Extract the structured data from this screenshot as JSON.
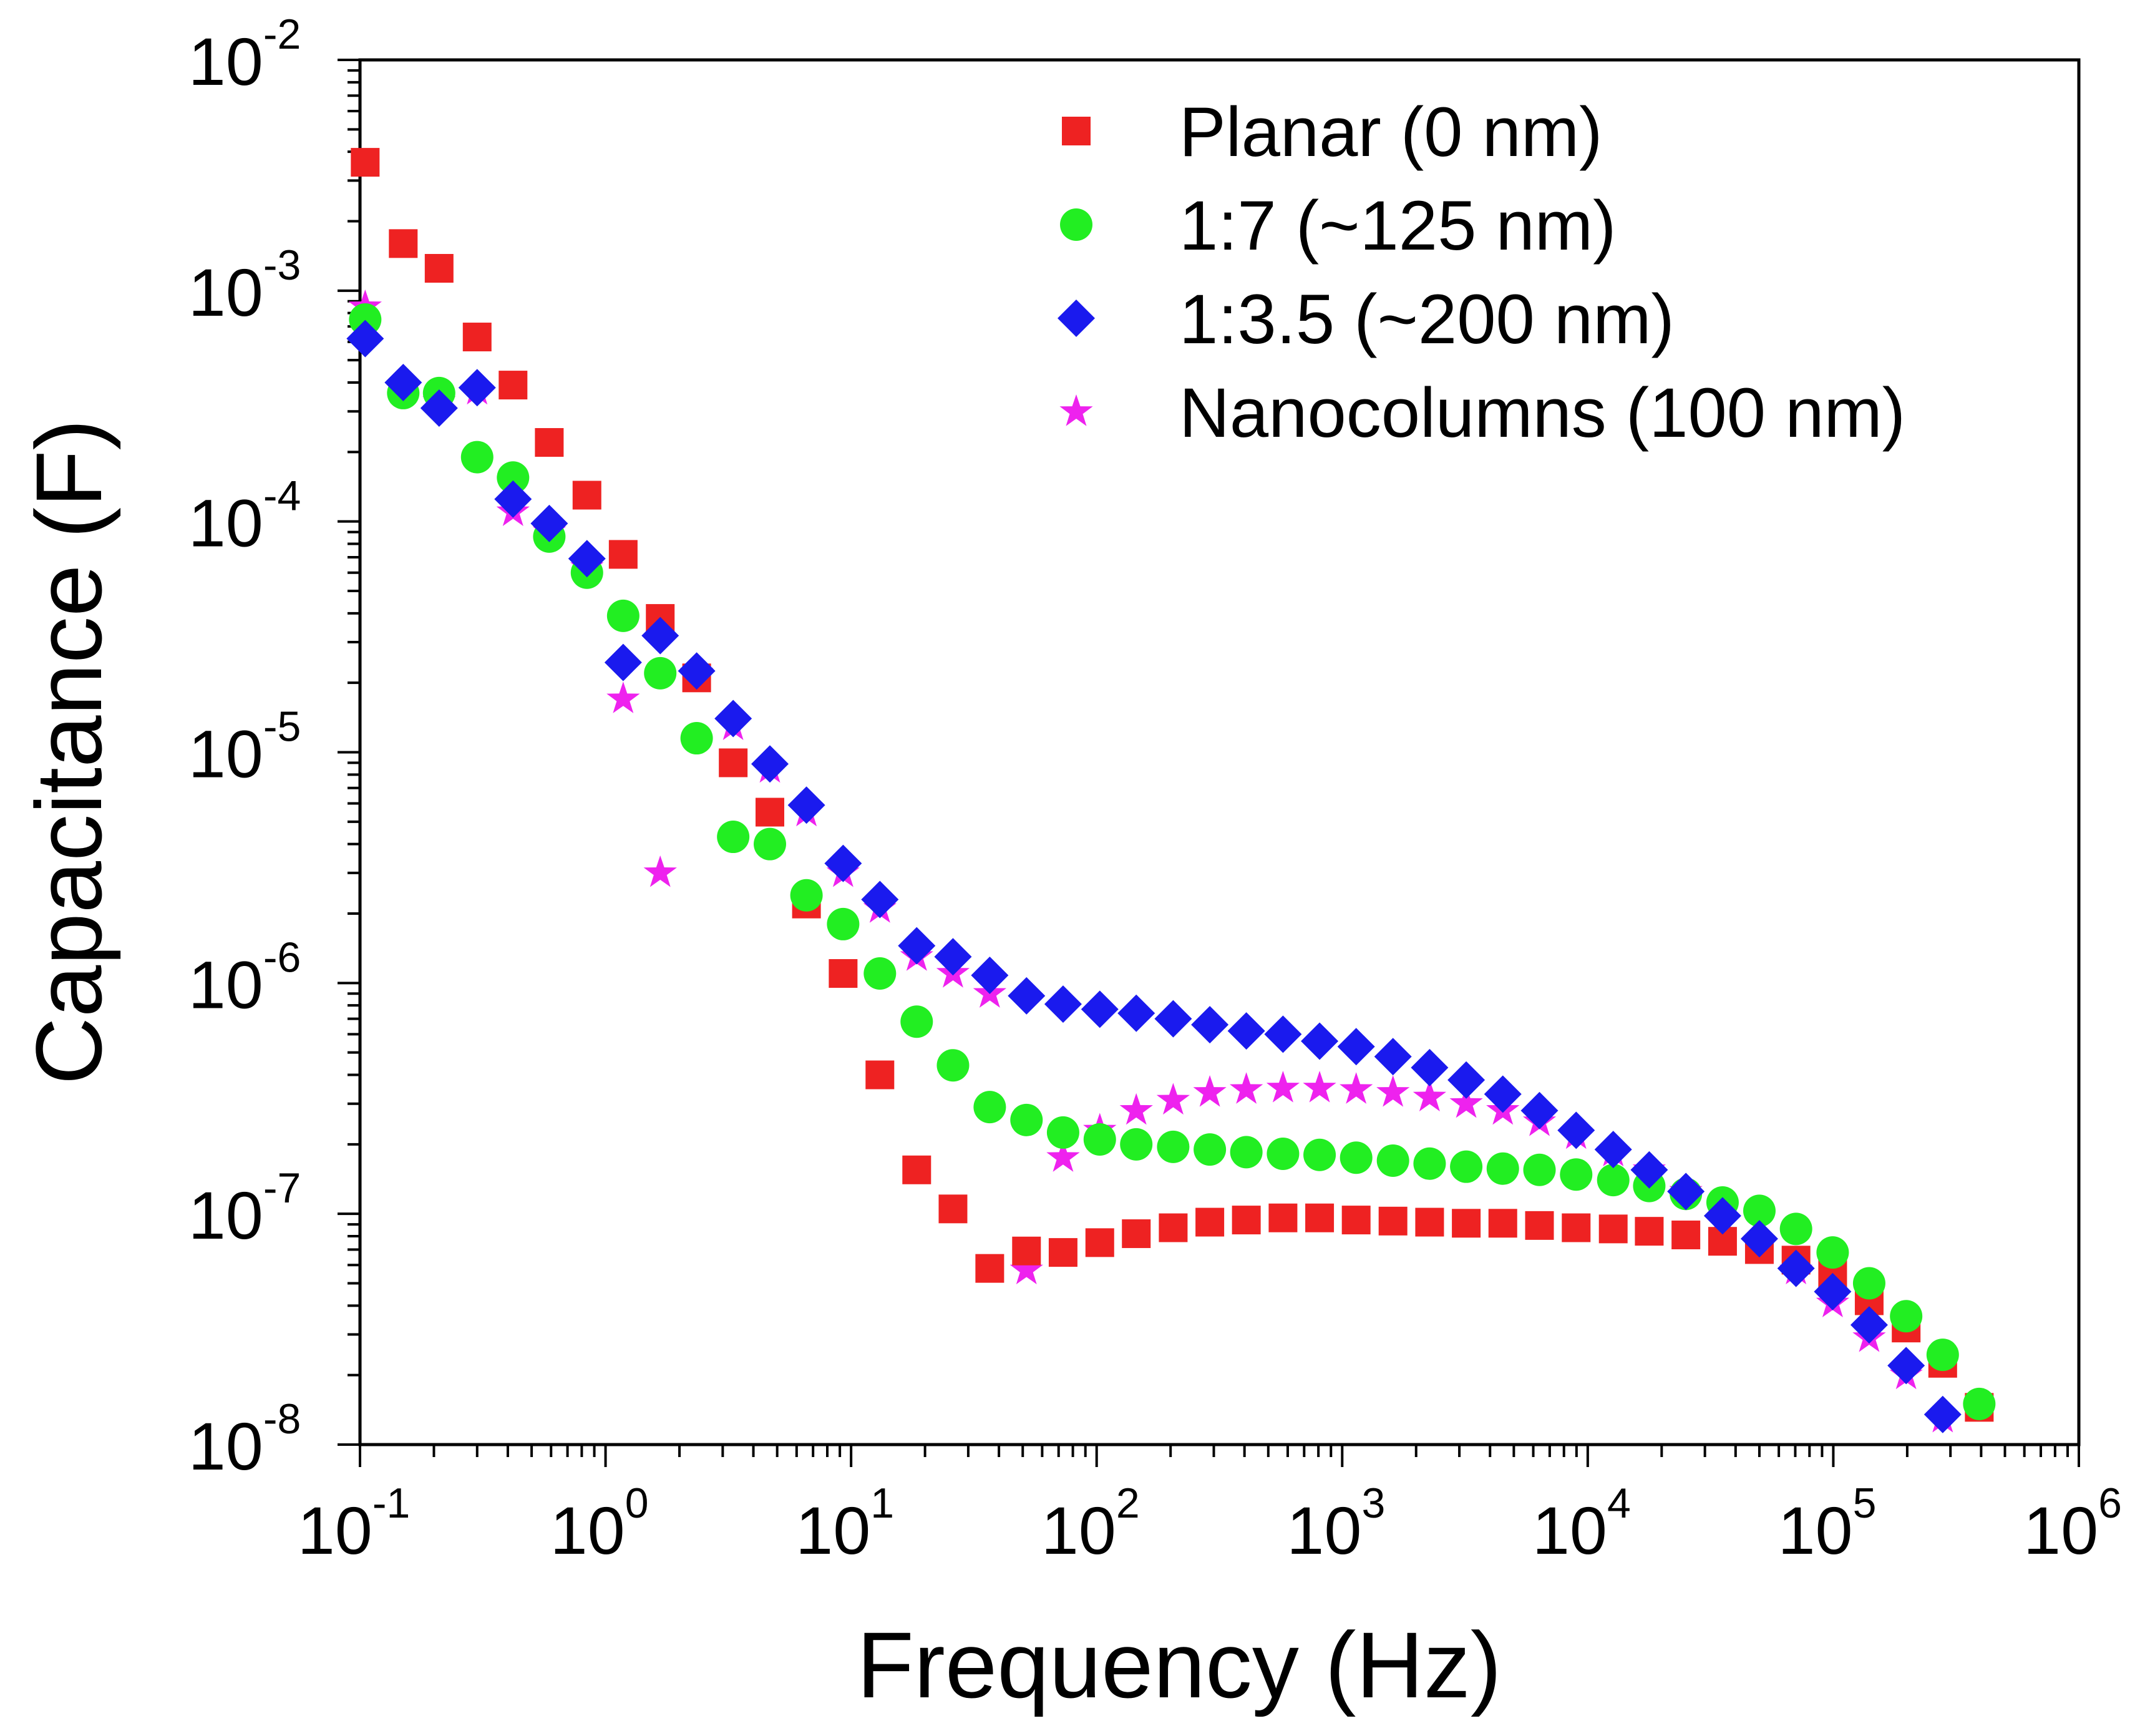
{
  "chart_data": {
    "type": "scatter",
    "title": "",
    "xlabel": "Frequency (Hz)",
    "ylabel": "Capacitance (F)",
    "xscale": "log",
    "yscale": "log",
    "xlim": [
      0.1,
      1000000
    ],
    "ylim": [
      1e-08,
      0.01
    ],
    "x_ticks": [
      {
        "base": "10",
        "exp": "-1",
        "value": 0.1
      },
      {
        "base": "10",
        "exp": "0",
        "value": 1
      },
      {
        "base": "10",
        "exp": "1",
        "value": 10
      },
      {
        "base": "10",
        "exp": "2",
        "value": 100
      },
      {
        "base": "10",
        "exp": "3",
        "value": 1000
      },
      {
        "base": "10",
        "exp": "4",
        "value": 10000
      },
      {
        "base": "10",
        "exp": "5",
        "value": 100000
      },
      {
        "base": "10",
        "exp": "6",
        "value": 1000000
      }
    ],
    "y_ticks": [
      {
        "base": "10",
        "exp": "-8",
        "value": 1e-08
      },
      {
        "base": "10",
        "exp": "-7",
        "value": 1e-07
      },
      {
        "base": "10",
        "exp": "-6",
        "value": 1e-06
      },
      {
        "base": "10",
        "exp": "-5",
        "value": 1e-05
      },
      {
        "base": "10",
        "exp": "-4",
        "value": 0.0001
      },
      {
        "base": "10",
        "exp": "-3",
        "value": 0.001
      },
      {
        "base": "10",
        "exp": "-2",
        "value": 0.01
      }
    ],
    "legend_position": "top-right",
    "series": [
      {
        "name": "Planar (0 nm)",
        "marker": "square",
        "color": "#ee2222",
        "x": [
          0.105,
          0.15,
          0.21,
          0.3,
          0.42,
          0.59,
          0.84,
          1.18,
          1.67,
          2.35,
          3.31,
          4.67,
          6.58,
          9.28,
          13.1,
          18.5,
          26.0,
          36.7,
          51.8,
          73.0,
          103,
          145,
          205,
          289,
          407,
          574,
          809,
          1140,
          1610,
          2270,
          3200,
          4510,
          6360,
          8970,
          12700,
          17800,
          25100,
          35400,
          50000,
          70500,
          99400,
          140000,
          198000,
          279000,
          393000
        ],
        "y": [
          0.0036,
          0.0016,
          0.00125,
          0.00063,
          0.00039,
          0.00022,
          0.00013,
          7.2e-05,
          3.8e-05,
          2.1e-05,
          9e-06,
          5.5e-06,
          2.2e-06,
          1.1e-06,
          4e-07,
          1.55e-07,
          1.05e-07,
          5.8e-08,
          6.9e-08,
          6.8e-08,
          7.5e-08,
          8.2e-08,
          8.7e-08,
          9.2e-08,
          9.4e-08,
          9.6e-08,
          9.6e-08,
          9.4e-08,
          9.3e-08,
          9.2e-08,
          9.1e-08,
          9.1e-08,
          8.9e-08,
          8.7e-08,
          8.6e-08,
          8.4e-08,
          8.1e-08,
          7.6e-08,
          7e-08,
          6.3e-08,
          5.5e-08,
          4.2e-08,
          3.2e-08,
          2.25e-08,
          1.45e-08
        ]
      },
      {
        "name": "1:7 (~125 nm)",
        "marker": "circle",
        "color": "#22ee22",
        "x": [
          0.105,
          0.15,
          0.21,
          0.3,
          0.42,
          0.59,
          0.84,
          1.18,
          1.67,
          2.35,
          3.31,
          4.67,
          6.58,
          9.28,
          13.1,
          18.5,
          26.0,
          36.7,
          51.8,
          73.0,
          103,
          145,
          205,
          289,
          407,
          574,
          809,
          1140,
          1610,
          2270,
          3200,
          4510,
          6360,
          8970,
          12700,
          17800,
          25100,
          35400,
          50000,
          70500,
          99400,
          140000,
          198000,
          279000,
          393000
        ],
        "y": [
          0.00075,
          0.00036,
          0.00036,
          0.00019,
          0.000155,
          8.6e-05,
          6e-05,
          3.9e-05,
          2.2e-05,
          1.15e-05,
          4.3e-06,
          4e-06,
          2.4e-06,
          1.8e-06,
          1.1e-06,
          6.8e-07,
          4.4e-07,
          2.9e-07,
          2.55e-07,
          2.25e-07,
          2.1e-07,
          2e-07,
          1.95e-07,
          1.9e-07,
          1.85e-07,
          1.82e-07,
          1.8e-07,
          1.75e-07,
          1.7e-07,
          1.65e-07,
          1.6e-07,
          1.57e-07,
          1.55e-07,
          1.48e-07,
          1.4e-07,
          1.32e-07,
          1.22e-07,
          1.12e-07,
          1.03e-07,
          8.6e-08,
          6.8e-08,
          5e-08,
          3.6e-08,
          2.45e-08,
          1.5e-08
        ]
      },
      {
        "name": "1:3.5 (~200 nm)",
        "marker": "diamond",
        "color": "#1a1aee",
        "x": [
          0.105,
          0.15,
          0.21,
          0.3,
          0.42,
          0.59,
          0.84,
          1.18,
          1.67,
          2.35,
          3.31,
          4.67,
          6.58,
          9.28,
          13.1,
          18.5,
          26.0,
          36.7,
          51.8,
          73.0,
          103,
          145,
          205,
          289,
          407,
          574,
          809,
          1140,
          1610,
          2270,
          3200,
          4510,
          6360,
          8970,
          12700,
          17800,
          25100,
          35400,
          50000,
          70500,
          99400,
          140000,
          198000,
          279000
        ],
        "y": [
          0.00062,
          0.0004,
          0.00031,
          0.00038,
          0.000125,
          9.8e-05,
          6.9e-05,
          2.45e-05,
          3.2e-05,
          2.25e-05,
          1.4e-05,
          8.9e-06,
          5.9e-06,
          3.3e-06,
          2.3e-06,
          1.45e-06,
          1.3e-06,
          1.08e-06,
          8.8e-07,
          8.1e-07,
          7.7e-07,
          7.4e-07,
          7e-07,
          6.6e-07,
          6.2e-07,
          6e-07,
          5.6e-07,
          5.3e-07,
          4.8e-07,
          4.3e-07,
          3.8e-07,
          3.3e-07,
          2.8e-07,
          2.3e-07,
          1.9e-07,
          1.55e-07,
          1.25e-07,
          9.8e-08,
          7.8e-08,
          5.8e-08,
          4.6e-08,
          3.3e-08,
          2.2e-08,
          1.35e-08
        ]
      },
      {
        "name": "Nanocolumns (100 nm)",
        "marker": "star",
        "color": "#ee22ee",
        "x": [
          0.105,
          0.15,
          0.21,
          0.3,
          0.42,
          0.59,
          0.84,
          1.18,
          1.67,
          2.35,
          3.31,
          4.67,
          6.58,
          9.28,
          13.1,
          18.5,
          26.0,
          36.7,
          51.8,
          73.0,
          103,
          145,
          205,
          289,
          407,
          574,
          809,
          1140,
          1610,
          2270,
          3200,
          4510,
          6360,
          8970,
          12700,
          17800,
          25100,
          35400,
          50000,
          70500,
          99400,
          140000,
          198000,
          279000
        ],
        "y": [
          0.00085,
          0.00038,
          0.00033,
          0.00037,
          0.00011,
          9e-05,
          6.3e-05,
          1.7e-05,
          3e-06,
          2.2e-05,
          1.3e-05,
          8.5e-06,
          5.5e-06,
          3e-06,
          2.1e-06,
          1.3e-06,
          1.1e-06,
          9e-07,
          5.7e-08,
          1.75e-07,
          2.3e-07,
          2.8e-07,
          3.1e-07,
          3.35e-07,
          3.45e-07,
          3.5e-07,
          3.5e-07,
          3.45e-07,
          3.35e-07,
          3.2e-07,
          3e-07,
          2.8e-07,
          2.5e-07,
          2.2e-07,
          1.85e-07,
          1.55e-07,
          1.25e-07,
          9.5e-08,
          7.3e-08,
          5.7e-08,
          4.1e-08,
          2.9e-08,
          2e-08,
          1.3e-08
        ]
      }
    ]
  }
}
